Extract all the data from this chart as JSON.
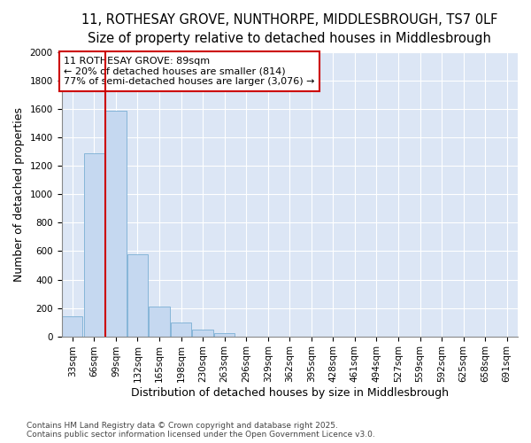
{
  "title_line1": "11, ROTHESAY GROVE, NUNTHORPE, MIDDLESBROUGH, TS7 0LF",
  "title_line2": "Size of property relative to detached houses in Middlesbrough",
  "xlabel": "Distribution of detached houses by size in Middlesbrough",
  "ylabel": "Number of detached properties",
  "categories": [
    "33sqm",
    "66sqm",
    "99sqm",
    "132sqm",
    "165sqm",
    "198sqm",
    "230sqm",
    "263sqm",
    "296sqm",
    "329sqm",
    "362sqm",
    "395sqm",
    "428sqm",
    "461sqm",
    "494sqm",
    "527sqm",
    "559sqm",
    "592sqm",
    "625sqm",
    "658sqm",
    "691sqm"
  ],
  "values": [
    140,
    1290,
    1590,
    580,
    210,
    95,
    50,
    25,
    0,
    0,
    0,
    0,
    0,
    0,
    0,
    0,
    0,
    0,
    0,
    0,
    0
  ],
  "bar_color": "#c5d8f0",
  "bar_edgecolor": "#7aafd4",
  "vline_color": "#cc0000",
  "vline_pos": 1.5,
  "annotation_text": "11 ROTHESAY GROVE: 89sqm\n← 20% of detached houses are smaller (814)\n77% of semi-detached houses are larger (3,076) →",
  "annotation_box_edgecolor": "#cc0000",
  "annotation_box_facecolor": "#ffffff",
  "ylim": [
    0,
    2000
  ],
  "yticks": [
    0,
    200,
    400,
    600,
    800,
    1000,
    1200,
    1400,
    1600,
    1800,
    2000
  ],
  "fig_bg_color": "#ffffff",
  "plot_bg_color": "#dce6f5",
  "footer_line1": "Contains HM Land Registry data © Crown copyright and database right 2025.",
  "footer_line2": "Contains public sector information licensed under the Open Government Licence v3.0.",
  "title_fontsize": 10.5,
  "subtitle_fontsize": 9.5,
  "tick_fontsize": 7.5,
  "label_fontsize": 9,
  "annotation_fontsize": 8,
  "footer_fontsize": 6.5
}
